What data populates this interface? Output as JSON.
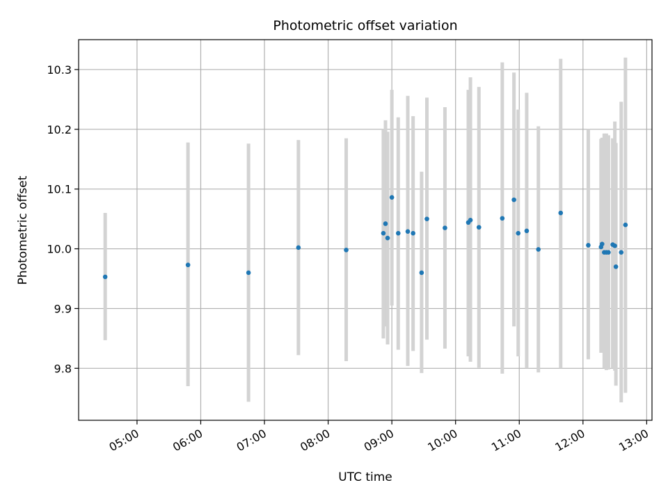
{
  "chart_data": {
    "type": "scatter",
    "title": "Photometric offset variation",
    "xlabel": "UTC time",
    "ylabel": "Photometric offset",
    "x_tick_labels": [
      "05:00",
      "06:00",
      "07:00",
      "08:00",
      "09:00",
      "10:00",
      "11:00",
      "12:00",
      "13:00"
    ],
    "x_tick_values": [
      "05:00",
      "06:00",
      "07:00",
      "08:00",
      "09:00",
      "10:00",
      "11:00",
      "12:00",
      "13:00"
    ],
    "y_tick_labels": [
      "9.8",
      "9.9",
      "10.0",
      "10.1",
      "10.2",
      "10.3"
    ],
    "y_tick_values": [
      9.8,
      9.9,
      10.0,
      10.1,
      10.2,
      10.3
    ],
    "xlim": [
      "04:05",
      "13:05"
    ],
    "ylim": [
      9.713,
      10.35
    ],
    "grid": true,
    "colors": {
      "marker": "#1f77b4",
      "errorbar": "#d3d3d3",
      "grid": "#b0b0b0"
    },
    "points": [
      {
        "t": "04:30",
        "y": 9.953,
        "lo": 9.847,
        "hi": 10.06
      },
      {
        "t": "05:48",
        "y": 9.973,
        "lo": 9.77,
        "hi": 10.178
      },
      {
        "t": "06:45",
        "y": 9.96,
        "lo": 9.744,
        "hi": 10.176
      },
      {
        "t": "07:32",
        "y": 10.002,
        "lo": 9.822,
        "hi": 10.182
      },
      {
        "t": "08:17",
        "y": 9.998,
        "lo": 9.812,
        "hi": 10.185
      },
      {
        "t": "08:52",
        "y": 10.026,
        "lo": 9.85,
        "hi": 10.2
      },
      {
        "t": "08:54",
        "y": 10.042,
        "lo": 9.87,
        "hi": 10.215
      },
      {
        "t": "08:56",
        "y": 10.018,
        "lo": 9.84,
        "hi": 10.196
      },
      {
        "t": "09:00",
        "y": 10.086,
        "lo": 9.905,
        "hi": 10.266
      },
      {
        "t": "09:06",
        "y": 10.026,
        "lo": 9.831,
        "hi": 10.22
      },
      {
        "t": "09:15",
        "y": 10.029,
        "lo": 9.804,
        "hi": 10.256
      },
      {
        "t": "09:20",
        "y": 10.026,
        "lo": 9.829,
        "hi": 10.222
      },
      {
        "t": "09:28",
        "y": 9.96,
        "lo": 9.792,
        "hi": 10.129
      },
      {
        "t": "09:33",
        "y": 10.05,
        "lo": 9.848,
        "hi": 10.253
      },
      {
        "t": "09:50",
        "y": 10.035,
        "lo": 9.833,
        "hi": 10.237
      },
      {
        "t": "10:12",
        "y": 10.044,
        "lo": 9.82,
        "hi": 10.266
      },
      {
        "t": "10:14",
        "y": 10.048,
        "lo": 9.811,
        "hi": 10.287
      },
      {
        "t": "10:22",
        "y": 10.036,
        "lo": 9.801,
        "hi": 10.271
      },
      {
        "t": "10:44",
        "y": 10.051,
        "lo": 9.791,
        "hi": 10.312
      },
      {
        "t": "10:55",
        "y": 10.082,
        "lo": 9.87,
        "hi": 10.295
      },
      {
        "t": "10:59",
        "y": 10.026,
        "lo": 9.82,
        "hi": 10.233
      },
      {
        "t": "11:07",
        "y": 10.03,
        "lo": 9.8,
        "hi": 10.261
      },
      {
        "t": "11:18",
        "y": 9.999,
        "lo": 9.793,
        "hi": 10.205
      },
      {
        "t": "11:39",
        "y": 10.06,
        "lo": 9.8,
        "hi": 10.318
      },
      {
        "t": "12:05",
        "y": 10.006,
        "lo": 9.815,
        "hi": 10.2
      },
      {
        "t": "12:17",
        "y": 10.003,
        "lo": 9.826,
        "hi": 10.184
      },
      {
        "t": "12:18",
        "y": 10.008,
        "lo": 9.829,
        "hi": 10.186
      },
      {
        "t": "12:20",
        "y": 9.994,
        "lo": 9.8,
        "hi": 10.193
      },
      {
        "t": "12:22",
        "y": 9.994,
        "lo": 9.797,
        "hi": 10.193
      },
      {
        "t": "12:24",
        "y": 9.994,
        "lo": 9.798,
        "hi": 10.19
      },
      {
        "t": "12:28",
        "y": 10.007,
        "lo": 9.8,
        "hi": 10.185
      },
      {
        "t": "12:30",
        "y": 10.005,
        "lo": 9.796,
        "hi": 10.213
      },
      {
        "t": "12:31",
        "y": 9.97,
        "lo": 9.771,
        "hi": 10.177
      },
      {
        "t": "12:36",
        "y": 9.994,
        "lo": 9.743,
        "hi": 10.246
      },
      {
        "t": "12:40",
        "y": 10.04,
        "lo": 9.759,
        "hi": 10.32
      }
    ]
  }
}
